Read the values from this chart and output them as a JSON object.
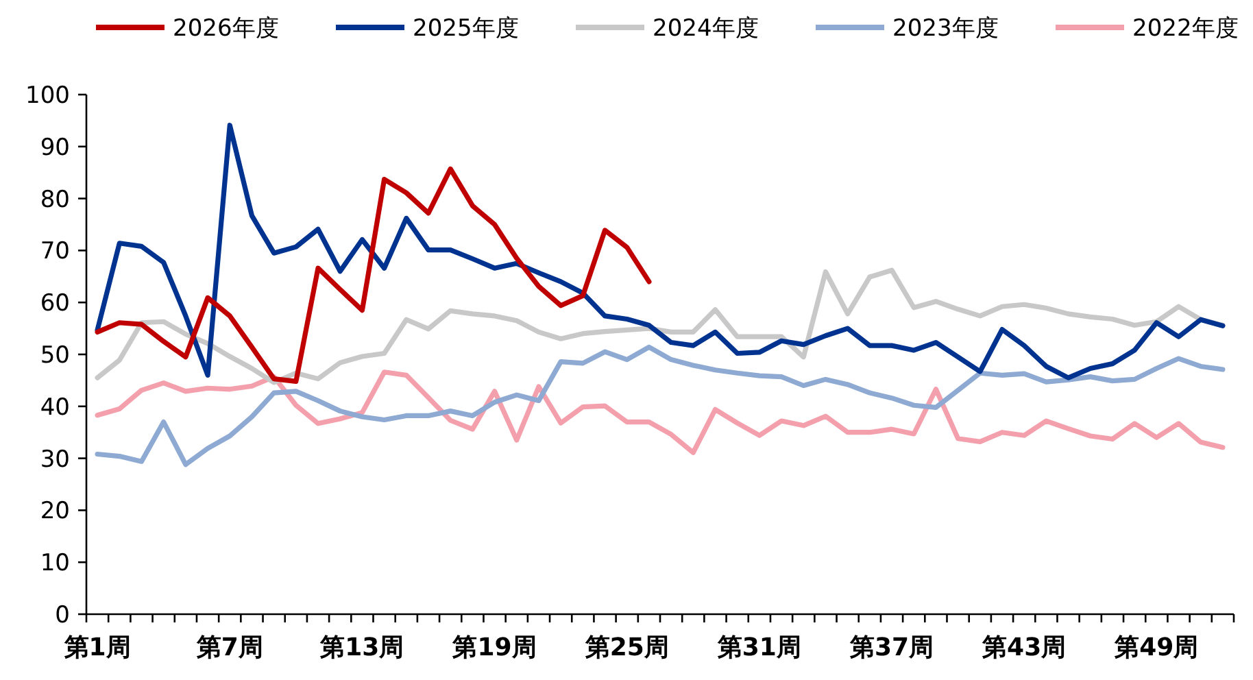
{
  "chart_data": {
    "type": "line",
    "legend": "top",
    "categories": [
      "第1周",
      null,
      null,
      null,
      null,
      null,
      "第7周",
      null,
      null,
      null,
      null,
      null,
      "第13周",
      null,
      null,
      null,
      null,
      null,
      "第19周",
      null,
      null,
      null,
      null,
      null,
      "第25周",
      null,
      null,
      null,
      null,
      null,
      "第31周",
      null,
      null,
      null,
      null,
      null,
      "第37周",
      null,
      null,
      null,
      null,
      null,
      "第43周",
      null,
      null,
      null,
      null,
      null,
      "第49周",
      null,
      null,
      null
    ],
    "ylim": [
      0,
      100
    ],
    "yticks": [
      0,
      10,
      20,
      30,
      40,
      50,
      60,
      70,
      80,
      90,
      100
    ],
    "series": [
      {
        "name": "2026年度",
        "color": "#c00000",
        "values": [
          54.3,
          56.1,
          55.8,
          52.5,
          49.5,
          60.9,
          57.4,
          51.4,
          45.3,
          44.8,
          66.6,
          62.5,
          58.5,
          83.7,
          81.1,
          77.2,
          85.7,
          78.6,
          75.0,
          68.5,
          63.1,
          59.4,
          61.3,
          73.9,
          70.6,
          64.0,
          null,
          null,
          null,
          null,
          null,
          null,
          null,
          null,
          null,
          null,
          null,
          null,
          null,
          null,
          null,
          null,
          null,
          null,
          null,
          null,
          null,
          null,
          null,
          null,
          null,
          null
        ]
      },
      {
        "name": "2025年度",
        "color": "#00338f",
        "values": [
          54.7,
          71.4,
          70.8,
          67.7,
          57.4,
          46.0,
          94.1,
          76.7,
          69.5,
          70.7,
          74.1,
          66.0,
          72.1,
          66.6,
          76.2,
          70.1,
          70.1,
          68.4,
          66.6,
          67.5,
          65.7,
          64.0,
          61.8,
          57.4,
          56.8,
          55.6,
          52.3,
          51.7,
          54.3,
          50.2,
          50.4,
          52.6,
          51.9,
          53.6,
          55.0,
          51.7,
          51.7,
          50.8,
          52.3,
          49.5,
          46.7,
          54.8,
          51.7,
          47.7,
          45.5,
          47.3,
          48.2,
          50.8,
          56.1,
          53.4,
          56.7,
          55.5
        ]
      },
      {
        "name": "2024年度",
        "color": "#c8c8c8",
        "values": [
          45.5,
          48.9,
          56.1,
          56.3,
          53.9,
          52.1,
          49.6,
          47.3,
          44.6,
          46.4,
          45.3,
          48.4,
          49.6,
          50.2,
          56.7,
          54.9,
          58.4,
          57.8,
          57.4,
          56.5,
          54.3,
          53.0,
          54.0,
          54.4,
          54.7,
          55.0,
          54.3,
          54.3,
          58.6,
          53.4,
          53.4,
          53.4,
          49.5,
          65.9,
          57.8,
          64.9,
          66.2,
          59.0,
          60.2,
          58.7,
          57.4,
          59.2,
          59.6,
          58.9,
          57.8,
          57.2,
          56.8,
          55.6,
          56.3,
          59.2,
          56.7,
          55.6
        ]
      },
      {
        "name": "2023年度",
        "color": "#8eaad2",
        "values": [
          30.8,
          30.4,
          29.4,
          37.0,
          28.8,
          31.9,
          34.3,
          38.0,
          42.6,
          42.9,
          41.1,
          39.1,
          38.0,
          37.4,
          38.2,
          38.2,
          39.1,
          38.2,
          40.8,
          42.2,
          41.1,
          48.6,
          48.3,
          50.5,
          49.0,
          51.4,
          49.0,
          47.9,
          47.0,
          46.4,
          45.9,
          45.7,
          44.0,
          45.2,
          44.2,
          42.6,
          41.6,
          40.2,
          39.8,
          43.1,
          46.4,
          46.0,
          46.3,
          44.7,
          45.1,
          45.7,
          44.9,
          45.2,
          47.3,
          49.2,
          47.7,
          47.1
        ]
      },
      {
        "name": "2022年度",
        "color": "#f4a0ac",
        "values": [
          38.3,
          39.5,
          43.1,
          44.5,
          42.9,
          43.5,
          43.3,
          43.9,
          45.7,
          40.2,
          36.7,
          37.6,
          38.8,
          46.6,
          46.0,
          41.7,
          37.3,
          35.6,
          42.9,
          33.5,
          43.8,
          36.8,
          39.9,
          40.1,
          37.0,
          37.0,
          34.6,
          31.1,
          39.4,
          36.8,
          34.4,
          37.2,
          36.3,
          38.1,
          35.0,
          35.0,
          35.6,
          34.7,
          43.3,
          33.8,
          33.2,
          35.0,
          34.4,
          37.2,
          35.7,
          34.3,
          33.7,
          36.7,
          34.0,
          36.7,
          33.1,
          32.1
        ]
      }
    ]
  }
}
